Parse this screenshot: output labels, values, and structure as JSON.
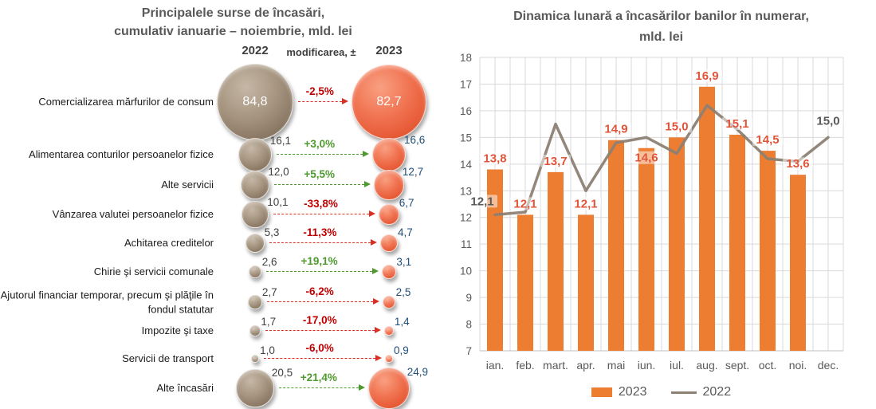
{
  "left_panel": {
    "title_line1": "Principalele surse de încasări,",
    "title_line2": "cumulativ ianuarie – noiembrie, mld. lei",
    "columns": {
      "y2022": "2022",
      "change": "modificarea, ±",
      "y2023": "2023"
    },
    "colors": {
      "bubble_2022": "#9A8A7A",
      "bubble_2023": "#EE6849",
      "increase": "#4F9A2E",
      "decrease": "#C00000",
      "value_2022_text": "#3f3f3f",
      "value_2023_text": "#1F4E79"
    },
    "rows": [
      {
        "label": "Comercializarea mărfurilor de consum",
        "value_2022": 84.8,
        "value_2023": 82.7,
        "display_2022": "84,8",
        "display_2023": "82,7",
        "change": "-2,5%",
        "direction": "down",
        "values_inside": true
      },
      {
        "label": "Alimentarea conturilor persoanelor fizice",
        "value_2022": 16.1,
        "value_2023": 16.6,
        "display_2022": "16,1",
        "display_2023": "16,6",
        "change": "+3,0%",
        "direction": "up",
        "values_inside": false
      },
      {
        "label": "Alte servicii",
        "value_2022": 12.0,
        "value_2023": 12.7,
        "display_2022": "12,0",
        "display_2023": "12,7",
        "change": "+5,5%",
        "direction": "up",
        "values_inside": false
      },
      {
        "label": "Vânzarea valutei persoanelor fizice",
        "value_2022": 10.1,
        "value_2023": 6.7,
        "display_2022": "10,1",
        "display_2023": "6,7",
        "change": "-33,8%",
        "direction": "down",
        "values_inside": false
      },
      {
        "label": "Achitarea creditelor",
        "value_2022": 5.3,
        "value_2023": 4.7,
        "display_2022": "5,3",
        "display_2023": "4,7",
        "change": "-11,3%",
        "direction": "down",
        "values_inside": false
      },
      {
        "label": "Chirie şi servicii comunale",
        "value_2022": 2.6,
        "value_2023": 3.1,
        "display_2022": "2,6",
        "display_2023": "3,1",
        "change": "+19,1%",
        "direction": "up",
        "values_inside": false
      },
      {
        "label": "Ajutorul financiar temporar, precum şi plăţile în fondul statutar",
        "value_2022": 2.7,
        "value_2023": 2.5,
        "display_2022": "2,7",
        "display_2023": "2,5",
        "change": "-6,2%",
        "direction": "down",
        "values_inside": false
      },
      {
        "label": "Impozite şi taxe",
        "value_2022": 1.7,
        "value_2023": 1.4,
        "display_2022": "1,7",
        "display_2023": "1,4",
        "change": "-17,0%",
        "direction": "down",
        "values_inside": false
      },
      {
        "label": "Servicii de transport",
        "value_2022": 1.0,
        "value_2023": 0.9,
        "display_2022": "1,0",
        "display_2023": "0,9",
        "change": "-6,0%",
        "direction": "down",
        "values_inside": false
      },
      {
        "label": "Alte încasări",
        "value_2022": 20.5,
        "value_2023": 24.9,
        "display_2022": "20,5",
        "display_2023": "24,9",
        "change": "+21,4%",
        "direction": "up",
        "values_inside": false
      }
    ]
  },
  "chart_data": {
    "type": "bar+line",
    "title_line1": "Dinamica lunară a încasărilor banilor în numerar,",
    "title_line2": "mld. lei",
    "categories": [
      "ian.",
      "feb.",
      "mart.",
      "apr.",
      "mai",
      "iun.",
      "iul.",
      "aug.",
      "sept.",
      "oct.",
      "noi.",
      "dec."
    ],
    "series": [
      {
        "name": "2023",
        "type": "bar",
        "color": "#ED7D31",
        "label_color": "#E0553A",
        "values": [
          13.8,
          12.1,
          13.7,
          12.1,
          14.9,
          14.6,
          15.0,
          16.9,
          15.1,
          14.5,
          13.6,
          null
        ],
        "labels": [
          "13,8",
          "12,1",
          "13,7",
          "12,1",
          "14,9",
          "14,6",
          "15,0",
          "16,9",
          "15,1",
          "14,5",
          "13,6",
          ""
        ]
      },
      {
        "name": "2022",
        "type": "line",
        "color": "#8C8173",
        "label_color": "#595959",
        "values": [
          12.1,
          12.2,
          15.5,
          13.0,
          14.8,
          15.0,
          14.4,
          16.2,
          15.3,
          14.2,
          14.1,
          15.0
        ],
        "labels": [
          "12,1",
          "",
          "",
          "",
          "",
          "",
          "",
          "",
          "",
          "",
          "",
          "15,0"
        ]
      }
    ],
    "ylim": [
      7,
      18
    ],
    "ytick_step": 1,
    "grid": true,
    "gridline_color": "#D9D9D9",
    "axis_text_color": "#595959",
    "legend_position": "bottom"
  }
}
